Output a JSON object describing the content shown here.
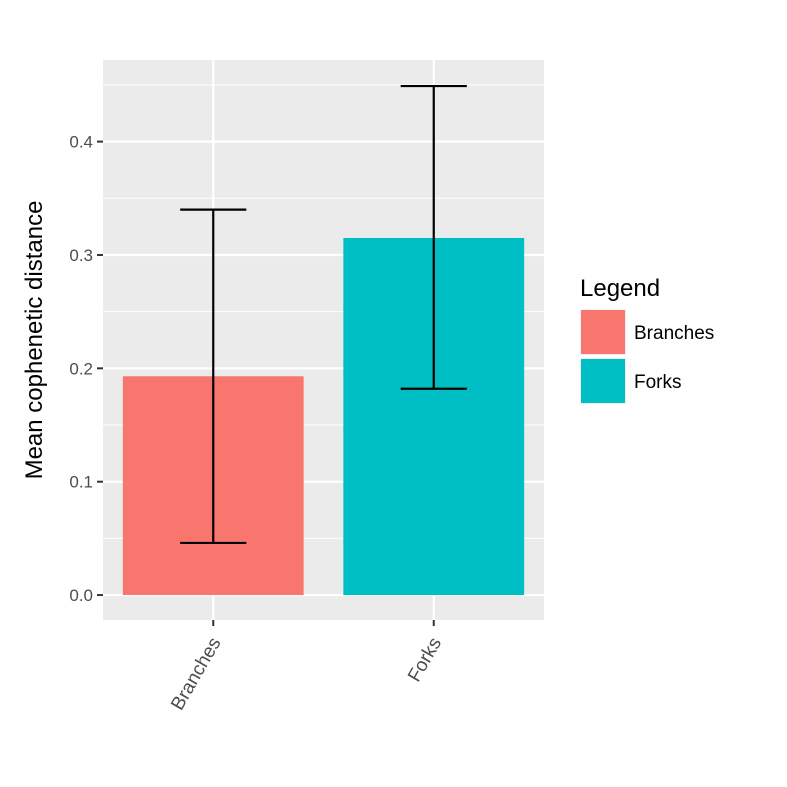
{
  "chart_data": {
    "type": "bar",
    "categories": [
      "Branches",
      "Forks"
    ],
    "values": [
      0.193,
      0.315
    ],
    "error_bars": [
      {
        "low": 0.046,
        "high": 0.34
      },
      {
        "low": 0.182,
        "high": 0.449
      }
    ],
    "ylabel": "Mean cophenetic distance",
    "xlabel": "",
    "ylim": [
      -0.022,
      0.472
    ],
    "yticks": [
      "0.0",
      "0.1",
      "0.2",
      "0.3",
      "0.4"
    ],
    "ytick_values": [
      0,
      0.1,
      0.2,
      0.3,
      0.4
    ],
    "grid": true,
    "legend": {
      "title": "Legend",
      "placement": "right",
      "entries": [
        "Branches",
        "Forks"
      ]
    },
    "colors": {
      "Branches": "#F8766D",
      "Forks": "#00BFC4",
      "panel": "#EBEBEB",
      "grid": "#FFFFFF",
      "error_bar": "#000000"
    }
  }
}
